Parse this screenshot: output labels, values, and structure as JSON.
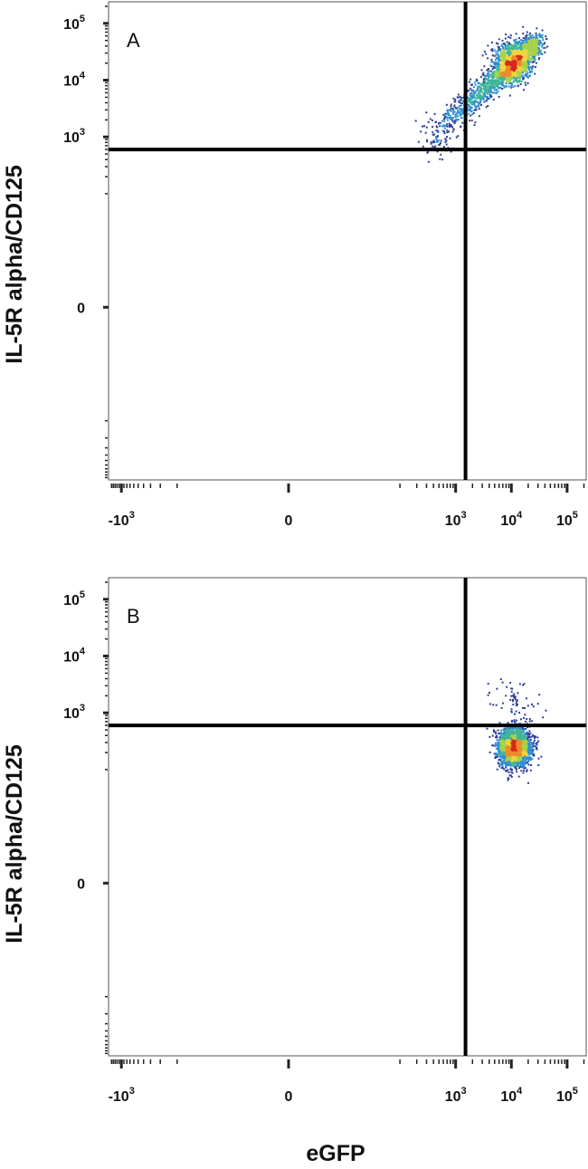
{
  "chart_data": [
    {
      "type": "scatter",
      "panel_label": "A",
      "xlabel": "",
      "ylabel": "IL-5R alpha/CD125",
      "x_scale": "biexponential",
      "y_scale": "biexponential",
      "x_ticks": [
        {
          "value": -1000,
          "base": "-10",
          "exp": "3"
        },
        {
          "value": 0,
          "base": "0",
          "exp": ""
        },
        {
          "value": 1000,
          "base": "10",
          "exp": "3"
        },
        {
          "value": 10000,
          "base": "10",
          "exp": "4"
        },
        {
          "value": 100000,
          "base": "10",
          "exp": "5"
        }
      ],
      "y_ticks": [
        {
          "value": 0,
          "base": "0",
          "exp": ""
        },
        {
          "value": 1000,
          "base": "10",
          "exp": "3"
        },
        {
          "value": 10000,
          "base": "10",
          "exp": "4"
        },
        {
          "value": 100000,
          "base": "10",
          "exp": "5"
        }
      ],
      "quadrant_gates": {
        "x": 1500,
        "y": 600
      },
      "populations": [
        {
          "kind": "diagonal",
          "x_start": 400,
          "y_start": 1200,
          "x_end": 30000,
          "y_end": 50000,
          "spread": 0.12,
          "count": 1500
        },
        {
          "kind": "cluster",
          "x_center": 9500,
          "y_center": 20000,
          "spread": 0.16,
          "count": 900
        },
        {
          "kind": "cluster",
          "x_center": 450,
          "y_center": 900,
          "spread": 0.18,
          "count": 60
        }
      ],
      "grid": false,
      "legend": "none"
    },
    {
      "type": "scatter",
      "panel_label": "B",
      "xlabel": "eGFP",
      "ylabel": "IL-5R alpha/CD125",
      "x_scale": "biexponential",
      "y_scale": "biexponential",
      "x_ticks": [
        {
          "value": -1000,
          "base": "-10",
          "exp": "3"
        },
        {
          "value": 0,
          "base": "0",
          "exp": ""
        },
        {
          "value": 1000,
          "base": "10",
          "exp": "3"
        },
        {
          "value": 10000,
          "base": "10",
          "exp": "4"
        },
        {
          "value": 100000,
          "base": "10",
          "exp": "5"
        }
      ],
      "y_ticks": [
        {
          "value": 0,
          "base": "0",
          "exp": ""
        },
        {
          "value": 1000,
          "base": "10",
          "exp": "3"
        },
        {
          "value": 10000,
          "base": "10",
          "exp": "4"
        },
        {
          "value": 100000,
          "base": "10",
          "exp": "5"
        }
      ],
      "quadrant_gates": {
        "x": 1500,
        "y": 600
      },
      "populations": [
        {
          "kind": "cluster",
          "x_center": 11000,
          "y_center": 250,
          "spread": 0.14,
          "count": 2300
        },
        {
          "kind": "cluster",
          "x_center": 12000,
          "y_center": 1200,
          "spread": 0.22,
          "count": 80
        }
      ],
      "grid": false,
      "legend": "none"
    }
  ],
  "colors": {
    "density_scale": [
      "#2c3f9a",
      "#2f8fd0",
      "#3fb59a",
      "#a6d24a",
      "#f0d43a",
      "#f08a2a",
      "#d62a1e"
    ],
    "axis": "#222222",
    "gate_line": "#000000"
  }
}
